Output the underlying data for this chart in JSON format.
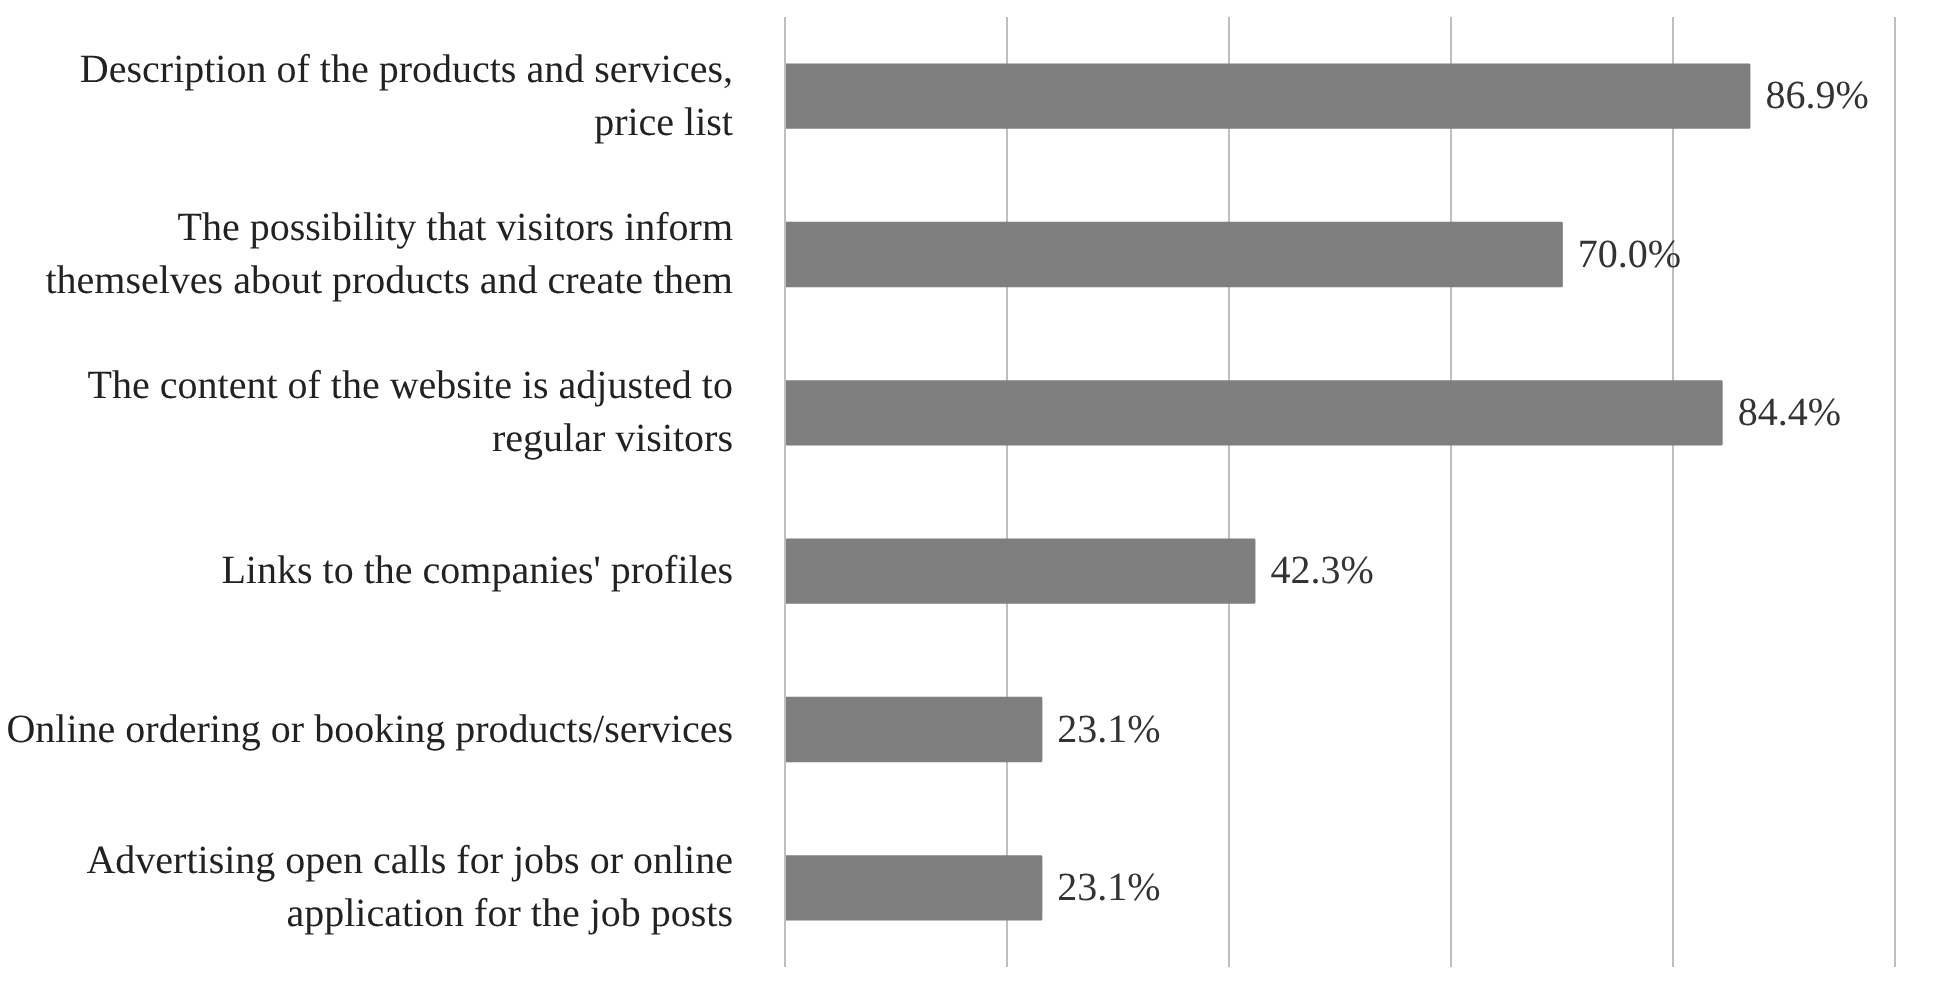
{
  "chart_data": {
    "type": "bar",
    "orientation": "horizontal",
    "categories": [
      "Description of the products and services, price list",
      "The possibility that visitors inform themselves about products and create them",
      "The content of the website is adjusted to regular visitors",
      "Links to the companies' profiles",
      "Online ordering or booking products/services",
      "Advertising open calls for jobs or online application for the job posts"
    ],
    "values": [
      86.9,
      70.0,
      84.4,
      42.3,
      23.1,
      23.1
    ],
    "value_labels": [
      "86.9%",
      "70.0%",
      "84.4%",
      "42.3%",
      "23.1%",
      "23.1%"
    ],
    "color": "#7f7f7f",
    "grid": "x",
    "tick_labels": "y"
  }
}
